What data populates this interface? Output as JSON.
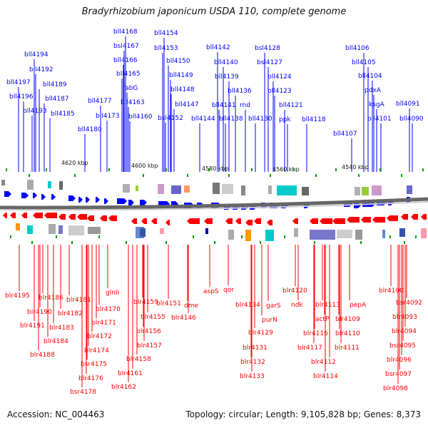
{
  "title": "Bradyrhizobium japonicum USDA 110, complete genome",
  "footer": {
    "accession": "Accession: NC_004463",
    "summary": "Topology: circular; Length: 9,105,828 bp; Genes: 8,373"
  },
  "colors": {
    "forward_strand": "#0000ff",
    "reverse_strand": "#ff0000",
    "backbone": "#666666",
    "marker": "#009900"
  },
  "scale_ticks": [
    "4620 kbp",
    "4600 kbp",
    "4580 kbp",
    "4560 kbp",
    "4540 kbp"
  ],
  "top_genes": [
    "bll4168",
    "bll4154",
    "bsl4167",
    "bll4153",
    "bll4166",
    "bll4150",
    "bll4165",
    "bll4149",
    "fabG",
    "bll4148",
    "bll4163",
    "bll4147",
    "bll4160",
    "bsl4152",
    "bll4194",
    "bll4192",
    "bll4197",
    "bll4189",
    "bll4196",
    "bll4187",
    "bll4193",
    "bll4185",
    "bll4177",
    "bll4173",
    "bll4180",
    "bll4142",
    "bsl4128",
    "bll4140",
    "bsl4127",
    "bll4139",
    "bll4124",
    "bll4136",
    "bll4123",
    "bll4141",
    "rnd",
    "bll4144",
    "bll4138",
    "bll4130",
    "bll4121",
    "ppk",
    "bll4118",
    "bll4106",
    "bll4105",
    "bll4104",
    "pdxA",
    "ksgA",
    "bll4091",
    "bll4101",
    "bll4090",
    "bll4107"
  ],
  "bottom_genes": [
    "blr4195",
    "blr4186",
    "blr4181",
    "glnII",
    "blr4190",
    "blr4182",
    "blr4170",
    "blr4191",
    "blr4183",
    "blr4171",
    "blr4184",
    "blr4172",
    "blr4188",
    "blr4174",
    "bsr4175",
    "blr4176",
    "bsr4178",
    "blr4159",
    "blr4155",
    "blr4156",
    "blr4157",
    "blr4158",
    "blr4161",
    "blr4162",
    "blr4151",
    "dme",
    "blr4146",
    "aspS",
    "qor",
    "blr4134",
    "garS",
    "purN",
    "blr4129",
    "blr4131",
    "blr4132",
    "blr4133",
    "blr4120",
    "ndk",
    "blr4113",
    "actP",
    "pepA",
    "blr4109",
    "blr4116",
    "blr4110",
    "blr4117",
    "blr4111",
    "blr4112",
    "blr4114",
    "blr4100",
    "bsr4092",
    "blr4093",
    "blr4094",
    "bsr4095",
    "blr4096",
    "bsr4097",
    "blr4098"
  ]
}
